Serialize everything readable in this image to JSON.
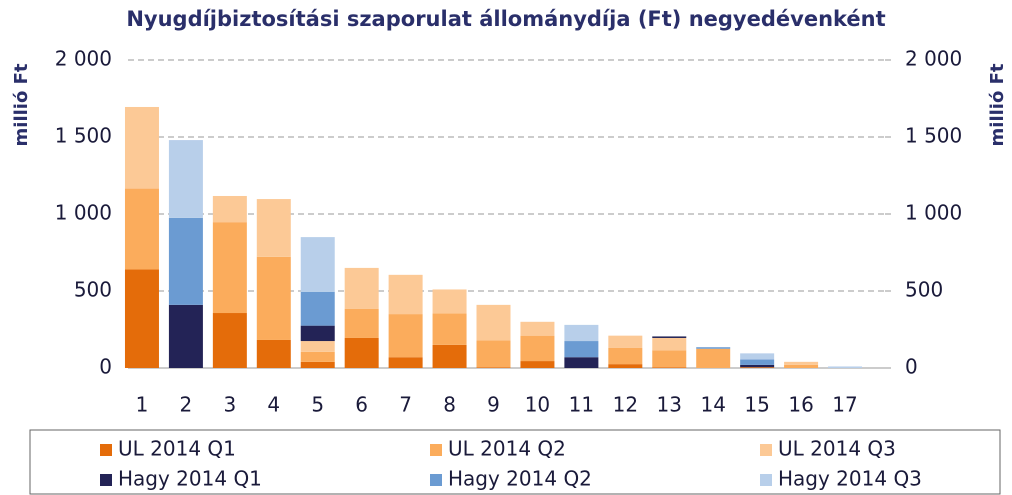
{
  "chart_data": {
    "type": "stacked_bar",
    "title": "Nyugdíjbiztosítási szaporulat állománydíja (Ft) negyedévenként",
    "y_label": "millió Ft",
    "y2_label": "millió Ft",
    "categories": [
      "1",
      "2",
      "3",
      "4",
      "5",
      "6",
      "7",
      "8",
      "9",
      "10",
      "11",
      "12",
      "13",
      "14",
      "15",
      "16",
      "17"
    ],
    "series": [
      {
        "name": "UL 2014 Q1",
        "color": "#e46c0a",
        "values": [
          640,
          0,
          357,
          182,
          40,
          195,
          70,
          150,
          5,
          45,
          0,
          25,
          5,
          0,
          5,
          0,
          0
        ]
      },
      {
        "name": "UL 2014 Q2",
        "color": "#fbac5c",
        "values": [
          525,
          0,
          590,
          540,
          65,
          190,
          280,
          205,
          175,
          165,
          0,
          105,
          110,
          125,
          0,
          20,
          0
        ]
      },
      {
        "name": "UL 2014 Q3",
        "color": "#fcc996",
        "values": [
          530,
          0,
          170,
          375,
          70,
          265,
          255,
          155,
          230,
          90,
          0,
          80,
          80,
          0,
          0,
          20,
          0
        ]
      },
      {
        "name": "Hagy 2014 Q1",
        "color": "#232356",
        "values": [
          0,
          410,
          0,
          0,
          100,
          0,
          0,
          0,
          0,
          0,
          70,
          0,
          10,
          0,
          15,
          0,
          0
        ]
      },
      {
        "name": "Hagy 2014 Q2",
        "color": "#6b9bd2",
        "values": [
          0,
          565,
          0,
          0,
          220,
          0,
          0,
          0,
          0,
          0,
          105,
          0,
          0,
          10,
          35,
          0,
          0
        ]
      },
      {
        "name": "Hagy 2014 Q3",
        "color": "#b8cfea",
        "values": [
          0,
          505,
          0,
          0,
          355,
          0,
          0,
          0,
          0,
          0,
          105,
          0,
          0,
          0,
          40,
          0,
          10
        ]
      }
    ],
    "ylim": [
      0,
      2000
    ],
    "yticks": [
      0,
      500,
      {
        "value": 1000,
        "label": "1 000"
      },
      {
        "value": 1500,
        "label": "1 500"
      },
      {
        "value": 2000,
        "label": "2 000"
      }
    ],
    "y2lim": [
      0,
      2000
    ],
    "y2ticks": [
      0,
      500,
      {
        "value": 1000,
        "label": "1 000"
      },
      {
        "value": 1500,
        "label": "1 500"
      },
      {
        "value": 2000,
        "label": "2 000"
      }
    ],
    "grid": true
  }
}
